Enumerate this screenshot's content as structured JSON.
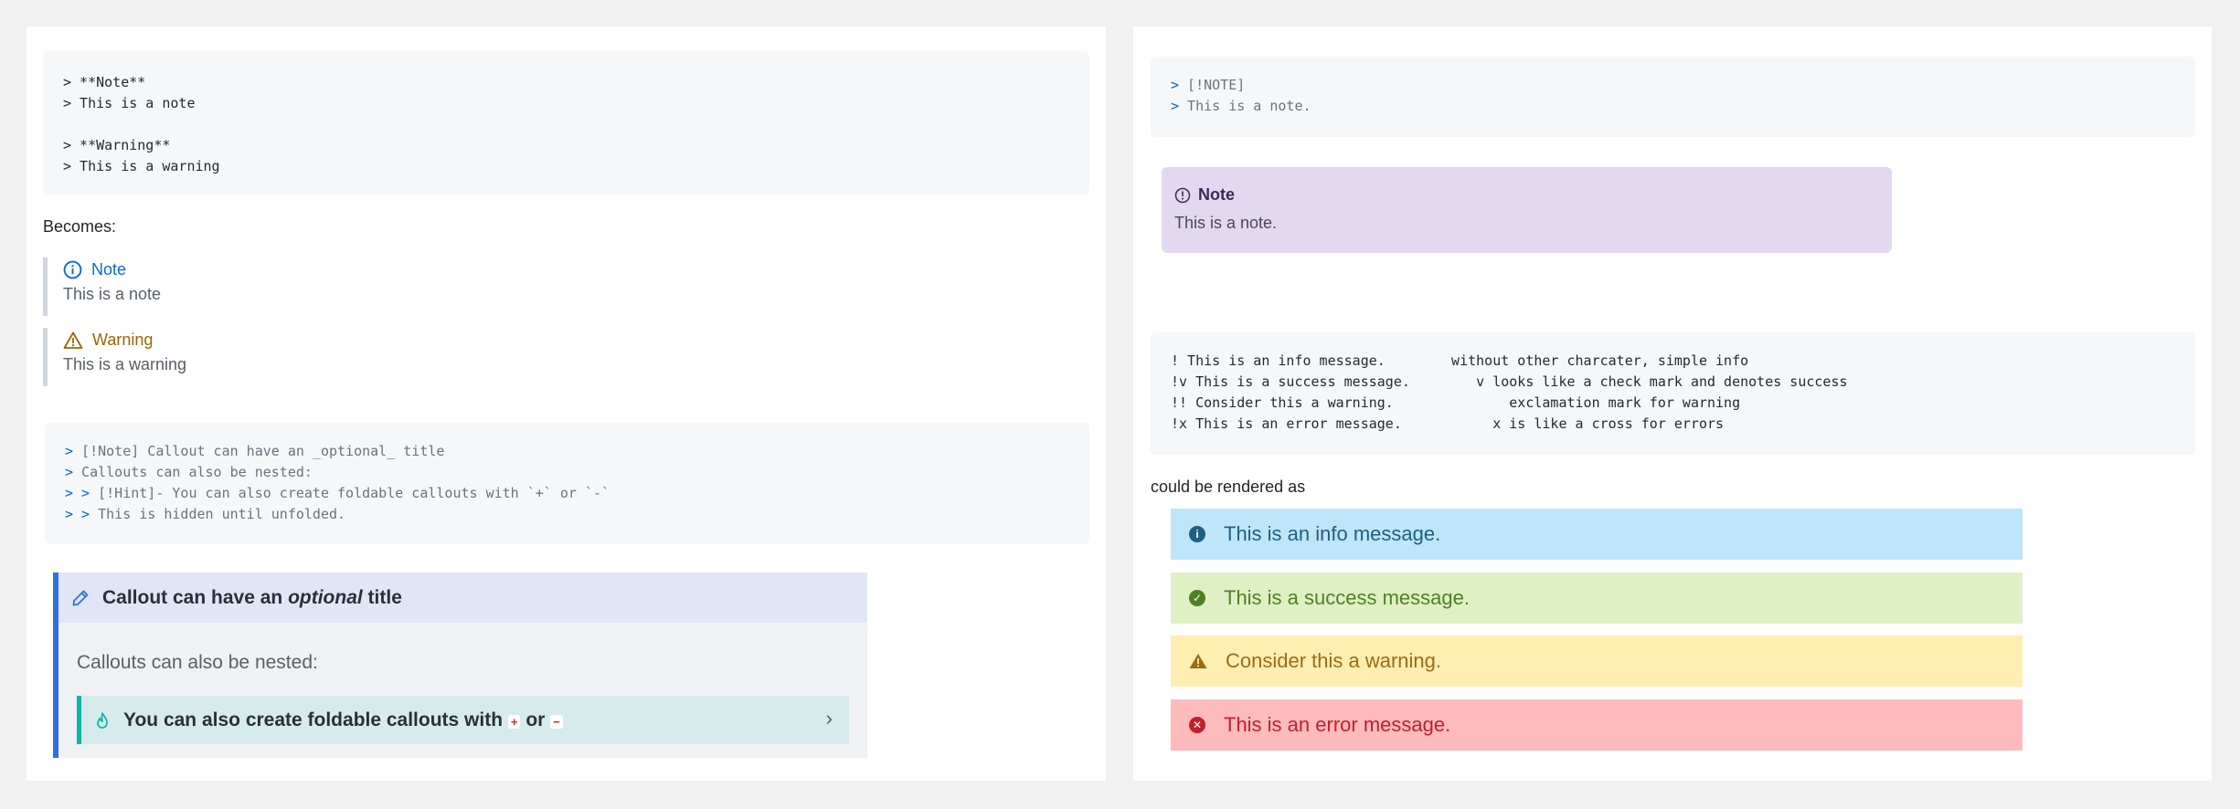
{
  "left": {
    "code1": {
      "lines": [
        "> **Note**",
        "> This is a note",
        "",
        "> **Warning**",
        "> This is a warning"
      ]
    },
    "becomes_label": "Becomes:",
    "callouts": {
      "note_title": "Note",
      "note_body": "This is a note",
      "warning_title": "Warning",
      "warning_body": "This is a warning"
    },
    "code2": {
      "lines": [
        {
          "marker": ">",
          "text": " [!Note] Callout can have an _optional_ title"
        },
        {
          "marker": ">",
          "text": " Callouts can also be nested:"
        },
        {
          "marker": "> >",
          "text": " [!Hint]- You can also create foldable callouts with `+` or `-`"
        },
        {
          "marker": "> >",
          "text": " This is hidden until unfolded."
        }
      ]
    },
    "obsidian": {
      "title_pre": "Callout can have an ",
      "title_em": "optional",
      "title_post": " title",
      "body": "Callouts can also be nested:",
      "nested_pre": "You can also create foldable callouts with ",
      "plus": "+",
      "or": " or ",
      "minus": "−",
      "chevron": "›"
    }
  },
  "right": {
    "code1": {
      "lines": [
        {
          "marker": ">",
          "text": " [!NOTE]"
        },
        {
          "marker": ">",
          "text": " This is a note."
        }
      ]
    },
    "note_box": {
      "title": "Note",
      "body": "This is a note."
    },
    "code2": {
      "lines": [
        "! This is an info message.        without other charcater, simple info",
        "!v This is a success message.        v looks like a check mark and denotes success",
        "!! Consider this a warning.              exclamation mark for warning",
        "!x This is an error message.           x is like a cross for errors"
      ]
    },
    "rendered_label": "could be rendered as",
    "alerts": {
      "info": "This is an info message.",
      "success": "This is a success message.",
      "warning": "Consider this a warning.",
      "error": "This is an error message."
    }
  }
}
